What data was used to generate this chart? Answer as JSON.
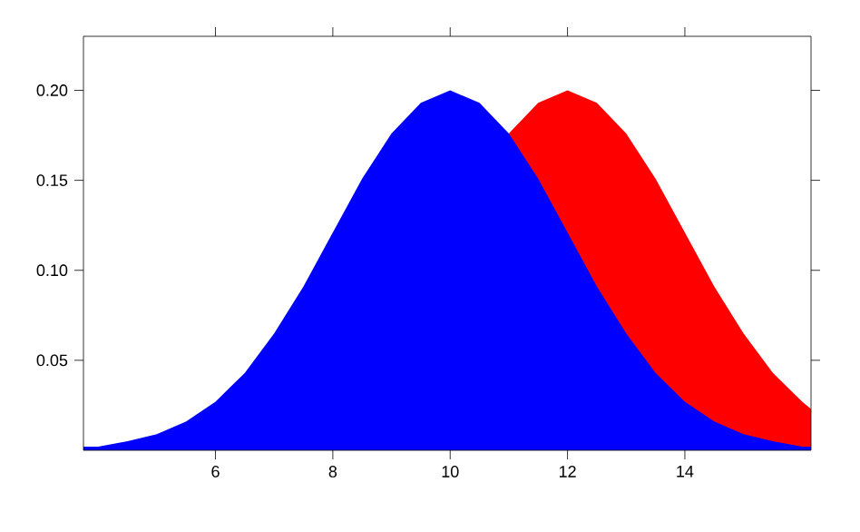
{
  "chart_data": {
    "type": "area",
    "x": [
      3.75,
      4,
      4.5,
      5,
      5.5,
      6,
      6.5,
      7,
      7.5,
      8,
      8.5,
      9,
      9.5,
      10,
      10.5,
      11,
      11.5,
      12,
      12.5,
      13,
      13.5,
      14,
      14.5,
      15,
      15.5,
      16,
      16.15
    ],
    "series": [
      {
        "color": "#ff0000",
        "values": [
          null,
          null,
          null,
          null,
          null,
          null,
          null,
          null,
          null,
          null,
          null,
          null,
          null,
          null,
          null,
          0.176,
          0.193,
          0.2,
          0.193,
          0.176,
          0.151,
          0.121,
          0.091,
          0.065,
          0.043,
          0.027,
          0.023
        ]
      },
      {
        "color": "#0000ff",
        "values": [
          0.002,
          0.002,
          0.005,
          0.009,
          0.016,
          0.027,
          0.043,
          0.065,
          0.091,
          0.121,
          0.151,
          0.176,
          0.193,
          0.2,
          0.193,
          0.176,
          0.151,
          0.121,
          0.091,
          0.065,
          0.043,
          0.027,
          0.016,
          0.009,
          0.005,
          0.002,
          0.002
        ]
      }
    ],
    "xlim": [
      3.75,
      16.15
    ],
    "ylim": [
      0,
      0.23
    ],
    "xticks": [
      6,
      8,
      10,
      12,
      14
    ],
    "yticks": [
      0.05,
      {
        "value": 0.1,
        "label": "0.10"
      },
      0.15,
      {
        "value": 0.2,
        "label": "0.20"
      }
    ]
  }
}
